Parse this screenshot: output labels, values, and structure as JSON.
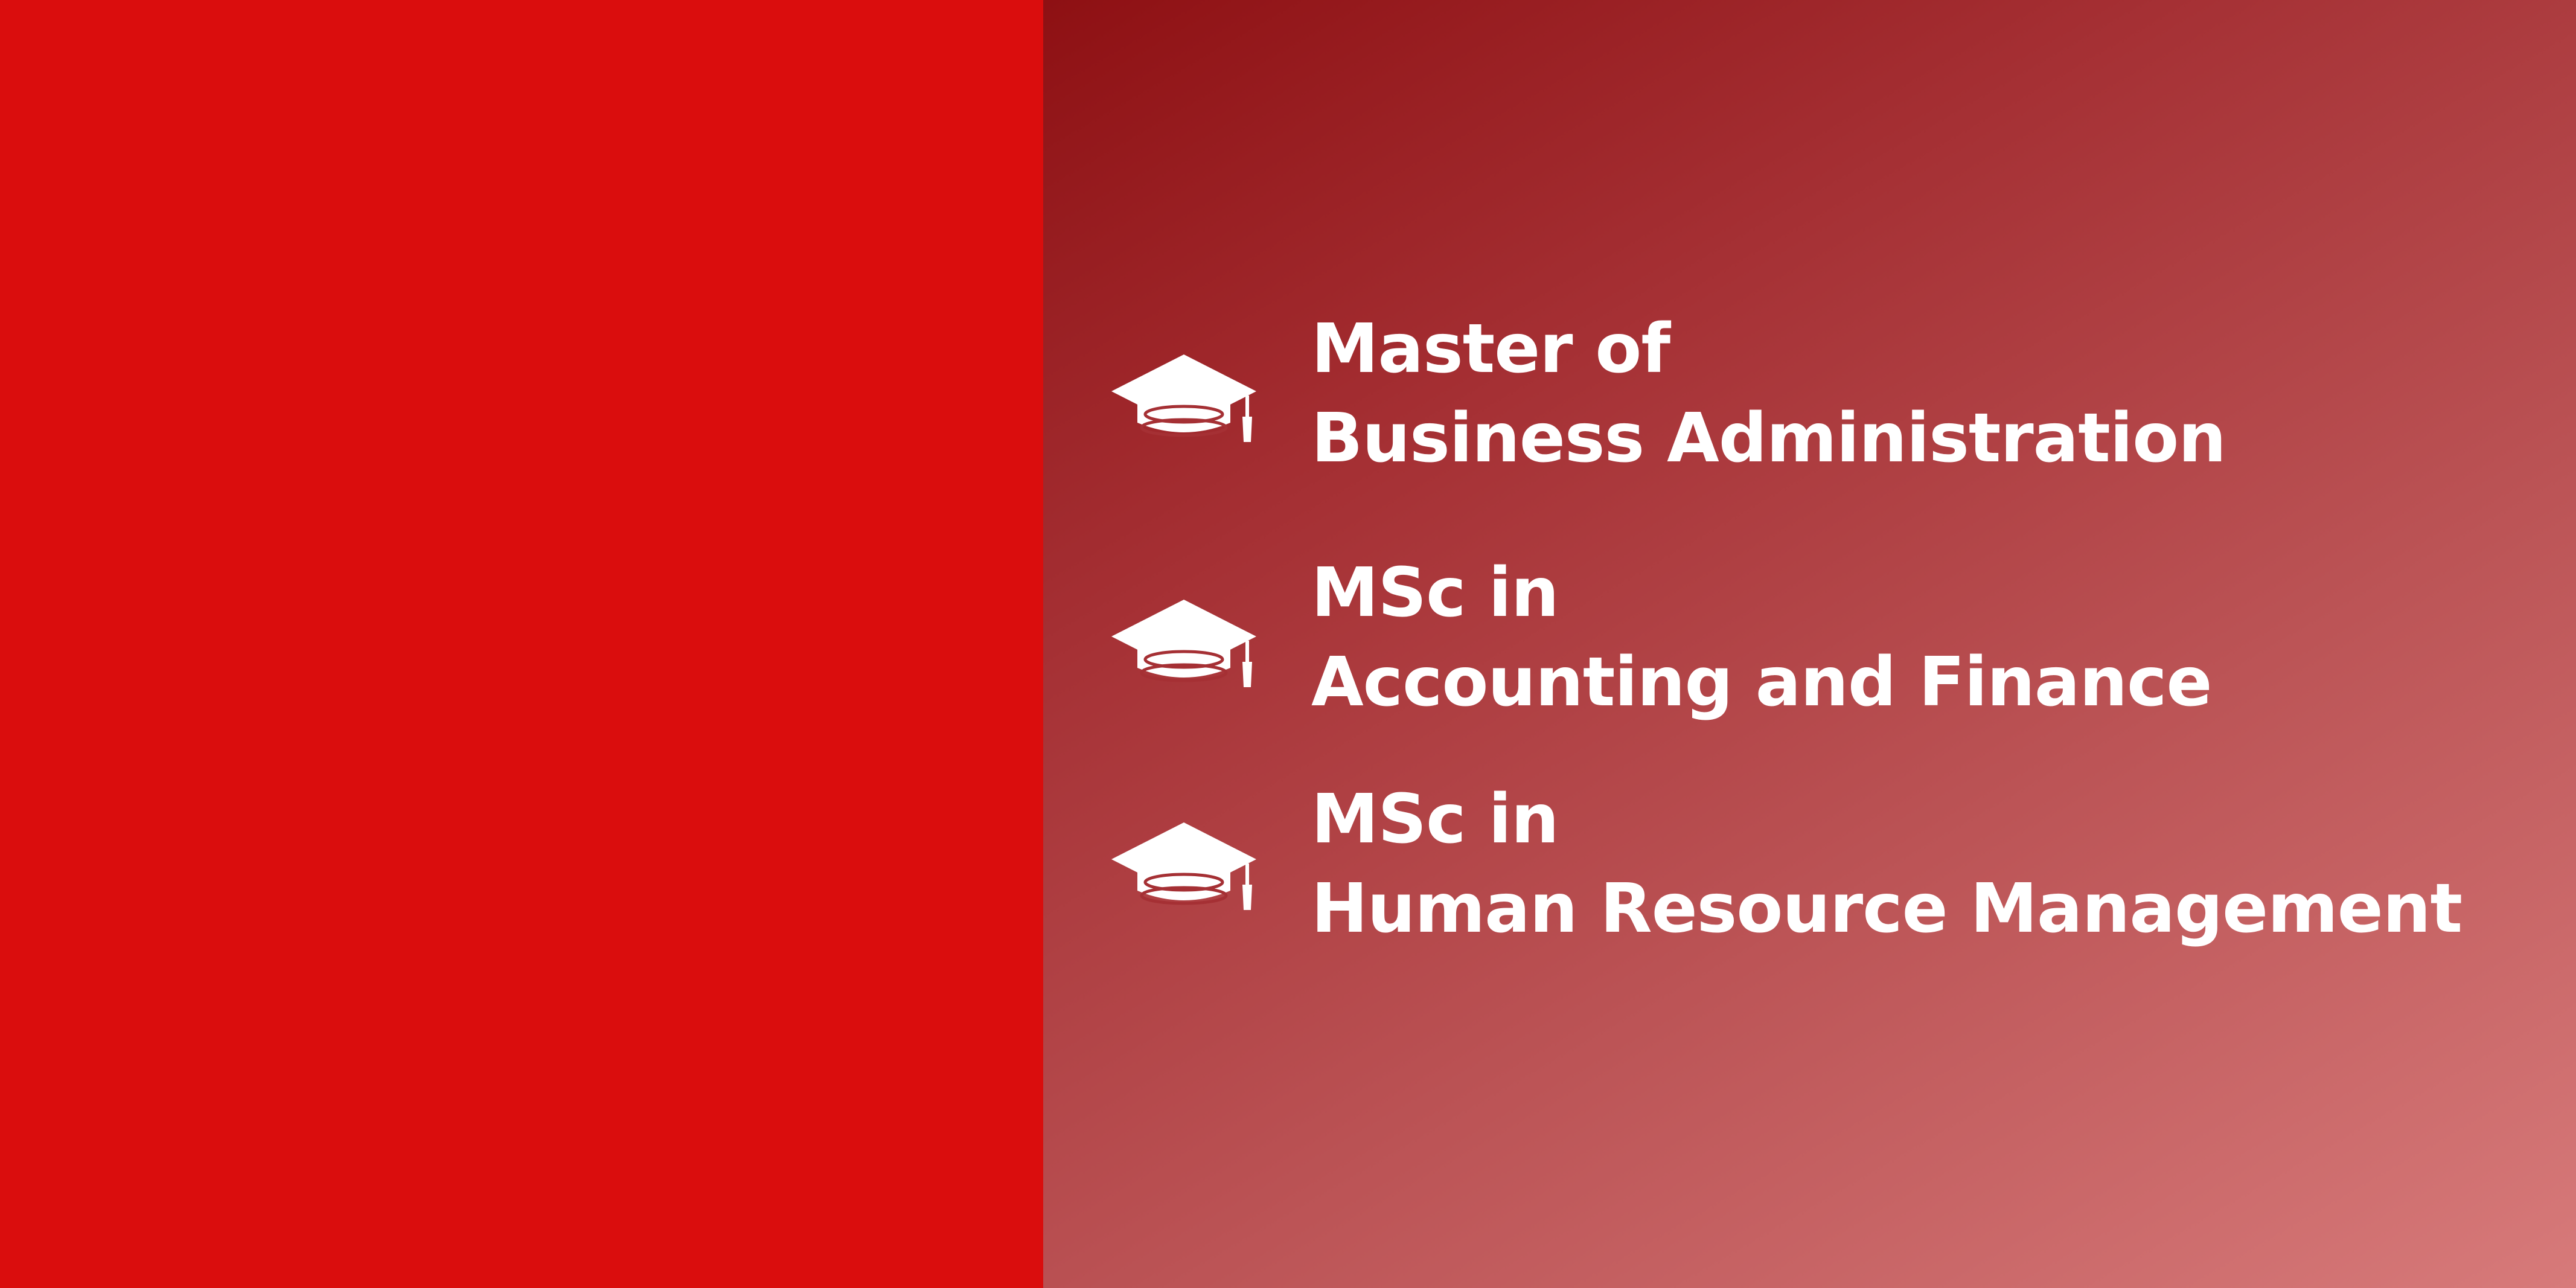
{
  "colors": {
    "left_panel": "#da0d0d",
    "gradient_start": "#8e1013",
    "gradient_end": "#d77a7a",
    "text": "#ffffff"
  },
  "programs": [
    {
      "icon": "graduation-cap-icon",
      "line1": "Master of",
      "line2": "Business Administration"
    },
    {
      "icon": "graduation-cap-icon",
      "line1": "MSc in",
      "line2": "Accounting and Finance"
    },
    {
      "icon": "graduation-cap-icon",
      "line1": "MSc in",
      "line2": "Human Resource Management"
    }
  ]
}
